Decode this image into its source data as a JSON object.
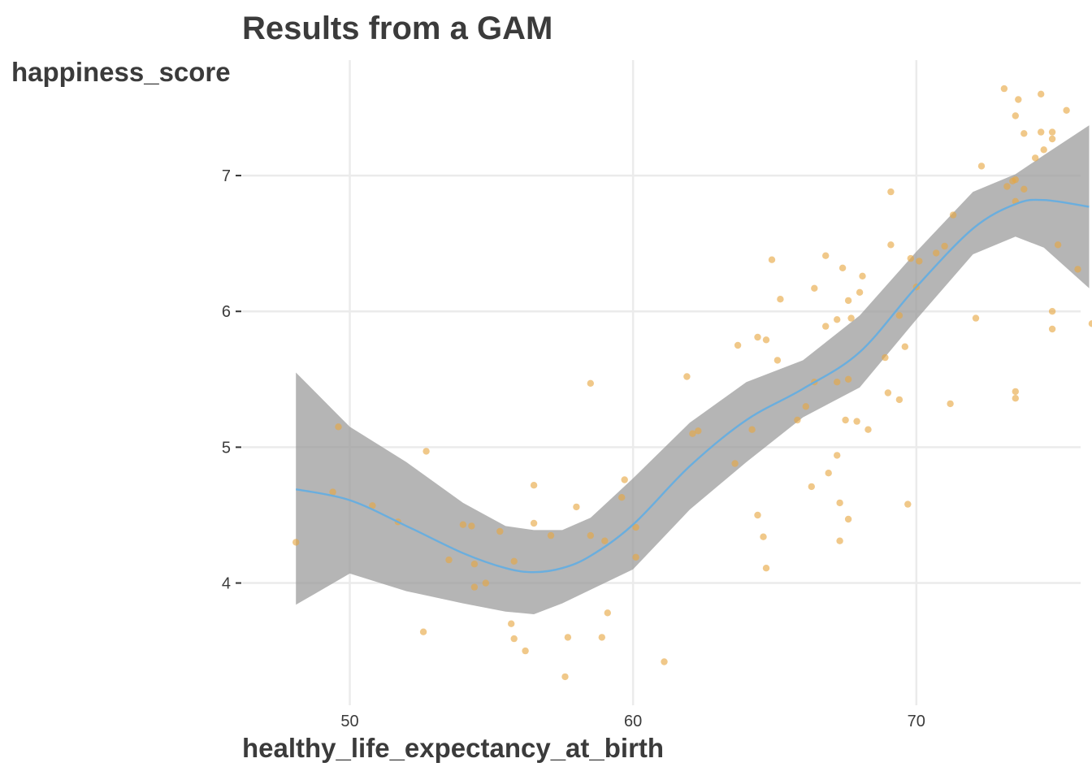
{
  "chart_data": {
    "type": "scatter",
    "title": "Results from a GAM",
    "xlabel": "healthy_life_expectancy_at_birth",
    "ylabel": "happiness_score",
    "xlim": [
      46.2,
      75.8
    ],
    "ylim": [
      3.1,
      7.85
    ],
    "xticks": [
      50,
      60,
      70
    ],
    "yticks": [
      4,
      5,
      6,
      7
    ],
    "grid": true,
    "colors": {
      "points": "#e6a641",
      "smooth_line": "#6aaede",
      "ribbon": "#999999"
    },
    "points": [
      [
        48.1,
        4.3
      ],
      [
        49.4,
        4.67
      ],
      [
        49.6,
        5.15
      ],
      [
        50.8,
        4.57
      ],
      [
        51.7,
        4.45
      ],
      [
        52.6,
        3.64
      ],
      [
        52.7,
        4.97
      ],
      [
        53.5,
        4.17
      ],
      [
        54.0,
        4.43
      ],
      [
        54.3,
        4.42
      ],
      [
        54.4,
        4.14
      ],
      [
        54.4,
        3.97
      ],
      [
        54.8,
        4.0
      ],
      [
        55.3,
        4.38
      ],
      [
        55.7,
        3.7
      ],
      [
        55.8,
        3.59
      ],
      [
        55.8,
        4.16
      ],
      [
        56.2,
        3.5
      ],
      [
        56.5,
        4.72
      ],
      [
        56.5,
        4.44
      ],
      [
        57.1,
        4.35
      ],
      [
        57.6,
        3.31
      ],
      [
        57.7,
        3.6
      ],
      [
        58.0,
        4.56
      ],
      [
        58.5,
        5.47
      ],
      [
        58.5,
        4.35
      ],
      [
        58.9,
        3.6
      ],
      [
        59.0,
        4.31
      ],
      [
        59.1,
        3.78
      ],
      [
        59.6,
        4.63
      ],
      [
        59.7,
        4.76
      ],
      [
        60.1,
        4.19
      ],
      [
        60.1,
        4.41
      ],
      [
        61.1,
        3.42
      ],
      [
        61.9,
        5.52
      ],
      [
        62.1,
        5.1
      ],
      [
        62.3,
        5.12
      ],
      [
        63.6,
        4.88
      ],
      [
        63.7,
        5.75
      ],
      [
        64.2,
        5.13
      ],
      [
        64.4,
        4.5
      ],
      [
        64.4,
        5.81
      ],
      [
        64.6,
        4.34
      ],
      [
        64.7,
        5.79
      ],
      [
        64.7,
        4.11
      ],
      [
        64.9,
        6.38
      ],
      [
        65.1,
        5.64
      ],
      [
        65.2,
        6.09
      ],
      [
        65.8,
        5.2
      ],
      [
        66.1,
        5.3
      ],
      [
        66.3,
        4.71
      ],
      [
        66.4,
        6.17
      ],
      [
        66.4,
        5.48
      ],
      [
        66.8,
        5.89
      ],
      [
        66.8,
        6.41
      ],
      [
        66.9,
        4.81
      ],
      [
        67.2,
        5.48
      ],
      [
        67.2,
        4.94
      ],
      [
        67.2,
        5.94
      ],
      [
        67.3,
        4.31
      ],
      [
        67.3,
        4.59
      ],
      [
        67.4,
        6.32
      ],
      [
        67.5,
        5.2
      ],
      [
        67.6,
        6.08
      ],
      [
        67.6,
        5.5
      ],
      [
        67.6,
        4.47
      ],
      [
        67.7,
        5.95
      ],
      [
        67.9,
        5.19
      ],
      [
        68.0,
        6.14
      ],
      [
        68.1,
        6.26
      ],
      [
        68.3,
        5.13
      ],
      [
        68.9,
        5.66
      ],
      [
        69.0,
        5.4
      ],
      [
        69.1,
        6.88
      ],
      [
        69.1,
        6.49
      ],
      [
        69.4,
        5.97
      ],
      [
        69.4,
        5.35
      ],
      [
        69.6,
        5.74
      ],
      [
        69.7,
        4.58
      ],
      [
        69.8,
        6.39
      ],
      [
        70.0,
        6.18
      ],
      [
        70.1,
        6.37
      ],
      [
        70.7,
        6.43
      ],
      [
        71.0,
        6.48
      ],
      [
        71.2,
        5.32
      ],
      [
        71.3,
        6.71
      ],
      [
        72.1,
        5.95
      ],
      [
        72.3,
        7.07
      ],
      [
        73.1,
        7.64
      ],
      [
        73.2,
        6.92
      ],
      [
        73.4,
        6.96
      ],
      [
        73.5,
        6.97
      ],
      [
        73.5,
        7.44
      ],
      [
        73.5,
        6.81
      ],
      [
        73.5,
        5.41
      ],
      [
        73.5,
        5.36
      ],
      [
        73.6,
        7.56
      ],
      [
        73.8,
        7.31
      ],
      [
        73.8,
        6.9
      ],
      [
        74.2,
        7.13
      ],
      [
        74.4,
        7.6
      ],
      [
        74.4,
        7.32
      ],
      [
        74.5,
        7.19
      ],
      [
        74.8,
        7.32
      ],
      [
        74.8,
        7.27
      ],
      [
        74.8,
        6.0
      ],
      [
        74.8,
        5.87
      ],
      [
        75.0,
        6.49
      ],
      [
        75.3,
        7.48
      ],
      [
        75.7,
        6.31
      ],
      [
        76.2,
        5.91
      ]
    ],
    "smooth": {
      "x": [
        48.1,
        50.0,
        52.0,
        54.0,
        55.5,
        56.5,
        57.5,
        58.5,
        60.0,
        62.0,
        64.0,
        66.0,
        68.0,
        70.0,
        72.0,
        73.5,
        74.5,
        76.1
      ],
      "y": [
        4.69,
        4.61,
        4.42,
        4.22,
        4.11,
        4.08,
        4.11,
        4.2,
        4.43,
        4.86,
        5.2,
        5.43,
        5.7,
        6.18,
        6.61,
        6.79,
        6.82,
        6.77
      ],
      "lower": [
        3.84,
        4.07,
        3.94,
        3.85,
        3.79,
        3.77,
        3.85,
        3.95,
        4.1,
        4.54,
        4.89,
        5.22,
        5.44,
        5.94,
        6.42,
        6.55,
        6.47,
        6.17
      ],
      "upper": [
        5.55,
        5.15,
        4.89,
        4.59,
        4.42,
        4.39,
        4.39,
        4.48,
        4.77,
        5.18,
        5.48,
        5.64,
        5.97,
        6.44,
        6.88,
        7.01,
        7.15,
        7.37
      ]
    }
  }
}
